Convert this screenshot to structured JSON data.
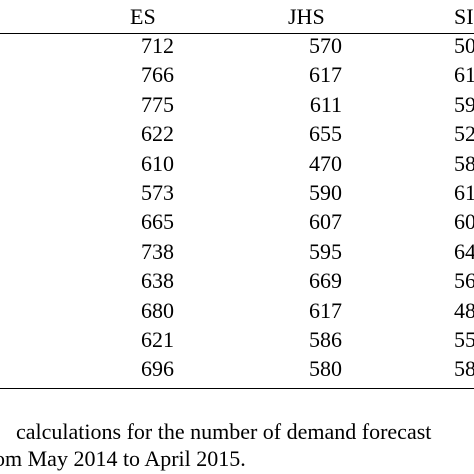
{
  "table": {
    "headers": [
      "ES",
      "JHS",
      "SI"
    ],
    "rows": [
      [
        "712",
        "570",
        "50"
      ],
      [
        "766",
        "617",
        "61"
      ],
      [
        "775",
        "611",
        "59"
      ],
      [
        "622",
        "655",
        "52"
      ],
      [
        "610",
        "470",
        "58"
      ],
      [
        "573",
        "590",
        "61"
      ],
      [
        "665",
        "607",
        "60"
      ],
      [
        "738",
        "595",
        "64"
      ],
      [
        "638",
        "669",
        "56"
      ],
      [
        "680",
        "617",
        "48"
      ],
      [
        "621",
        "586",
        "55"
      ],
      [
        "696",
        "580",
        "58"
      ]
    ]
  },
  "caption": {
    "line1": "calculations for the number of demand forecast",
    "line2": "om May 2014 to April 2015."
  }
}
